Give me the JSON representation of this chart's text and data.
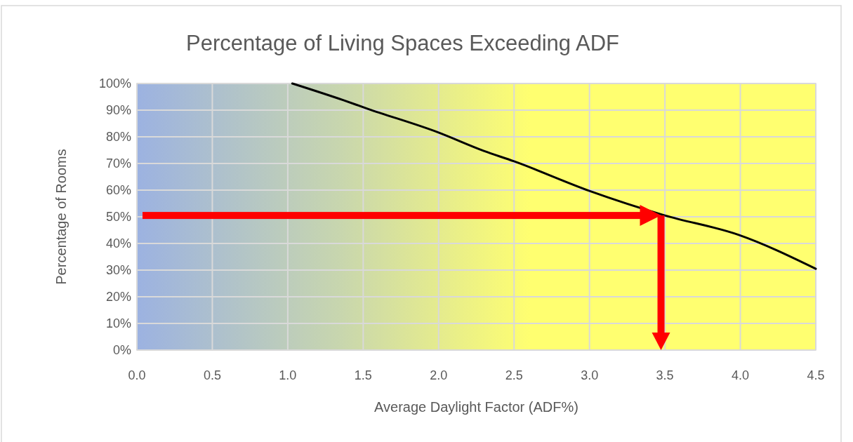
{
  "chart_data": {
    "type": "line",
    "title": "Percentage of Living Spaces Exceeding ADF",
    "xlabel": "Average Daylight Factor (ADF%)",
    "ylabel": "Percentage of Rooms",
    "series": [
      {
        "color": "#000000",
        "x": [
          1.03,
          1.37,
          1.53,
          1.99,
          2.3,
          2.5,
          3.0,
          3.5,
          3.99,
          4.5
        ],
        "values": [
          100,
          93.7,
          90.5,
          81.8,
          74.7,
          70.8,
          59.7,
          50.5,
          43.2,
          30.5
        ]
      }
    ],
    "xlim": [
      0,
      4.5
    ],
    "xticks": [
      {
        "value": 0,
        "label": "0.0"
      },
      {
        "value": 0.5,
        "label": "0.5"
      },
      {
        "value": 1,
        "label": "1.0"
      },
      {
        "value": 1.5,
        "label": "1.5"
      },
      {
        "value": 2,
        "label": "2.0"
      },
      {
        "value": 2.5,
        "label": "2.5"
      },
      {
        "value": 3,
        "label": "3.0"
      },
      {
        "value": 3.5,
        "label": "3.5"
      },
      {
        "value": 4,
        "label": "4.0"
      },
      {
        "value": 4.5,
        "label": "4.5"
      }
    ],
    "ylim": [
      0,
      100
    ],
    "yticks": [
      {
        "value": 0,
        "label": "0%"
      },
      {
        "value": 10,
        "label": "10%"
      },
      {
        "value": 20,
        "label": "20%"
      },
      {
        "value": 30,
        "label": "30%"
      },
      {
        "value": 40,
        "label": "40%"
      },
      {
        "value": 50,
        "label": "50%"
      },
      {
        "value": 60,
        "label": "60%"
      },
      {
        "value": 70,
        "label": "70%"
      },
      {
        "value": 80,
        "label": "80%"
      },
      {
        "value": 90,
        "label": "90%"
      },
      {
        "value": 100,
        "label": "100%"
      }
    ],
    "grid": true,
    "marker": "none",
    "line_style": "solid"
  }
}
